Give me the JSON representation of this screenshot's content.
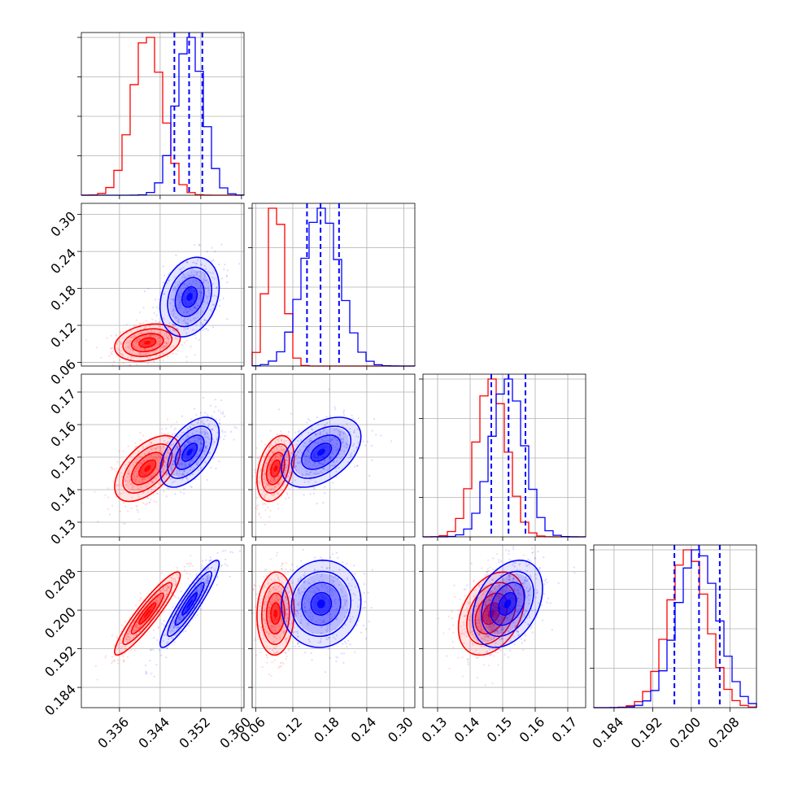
{
  "chart_data": {
    "type": "corner",
    "title": "",
    "grid": true,
    "colors": {
      "series_a": "#ff0000",
      "series_b": "#0000ff"
    },
    "series": [
      {
        "color": "#ff0000",
        "contour_style": "solid"
      },
      {
        "color": "#0000ff",
        "contour_style": "solid",
        "quantile_lines": "dashed"
      }
    ],
    "parameters": [
      {
        "range": [
          0.3285,
          0.3605
        ],
        "ticks": [
          0.336,
          0.344,
          0.352,
          0.36
        ],
        "tick_labels": [
          "0.336",
          "0.344",
          "0.352",
          "0.360"
        ]
      },
      {
        "range": [
          0.054,
          0.318
        ],
        "ticks": [
          0.06,
          0.12,
          0.18,
          0.24,
          0.3
        ],
        "tick_labels": [
          "0.06",
          "0.12",
          "0.18",
          "0.24",
          "0.30"
        ]
      },
      {
        "range": [
          0.1255,
          0.1755
        ],
        "ticks": [
          0.13,
          0.14,
          0.15,
          0.16,
          0.17
        ],
        "tick_labels": [
          "0.13",
          "0.14",
          "0.15",
          "0.16",
          "0.17"
        ]
      },
      {
        "range": [
          0.1798,
          0.2135
        ],
        "ticks": [
          0.184,
          0.192,
          0.2,
          0.208
        ],
        "tick_labels": [
          "0.184",
          "0.192",
          "0.200",
          "0.208"
        ]
      }
    ],
    "marginals": [
      {
        "series_a": {
          "mean": 0.3415,
          "sd": 0.003
        },
        "series_b": {
          "mean": 0.3498,
          "sd": 0.0027,
          "quantiles": [
            0.3468,
            0.3497,
            0.3523
          ]
        }
      },
      {
        "series_a": {
          "mean": 0.092,
          "sd": 0.014
        },
        "series_b": {
          "mean": 0.166,
          "sd": 0.03,
          "quantiles": [
            0.143,
            0.165,
            0.195
          ]
        }
      },
      {
        "series_a": {
          "mean": 0.1465,
          "sd": 0.0047
        },
        "series_b": {
          "mean": 0.1515,
          "sd": 0.005,
          "quantiles": [
            0.1465,
            0.1518,
            0.157
          ]
        }
      },
      {
        "series_a": {
          "mean": 0.1993,
          "sd": 0.004
        },
        "series_b": {
          "mean": 0.2013,
          "sd": 0.0042,
          "quantiles": [
            0.1965,
            0.2016,
            0.2059
          ]
        }
      }
    ],
    "correlations": {
      "series_a": {
        "1-0": 0.25,
        "2-0": 0.55,
        "3-0": 0.92,
        "2-1": 0.35,
        "3-1": 0.05,
        "3-2": 0.35
      },
      "series_b": {
        "1-0": 0.25,
        "2-0": 0.55,
        "3-0": 0.92,
        "2-1": 0.45,
        "3-1": 0.05,
        "3-2": 0.35
      }
    }
  }
}
